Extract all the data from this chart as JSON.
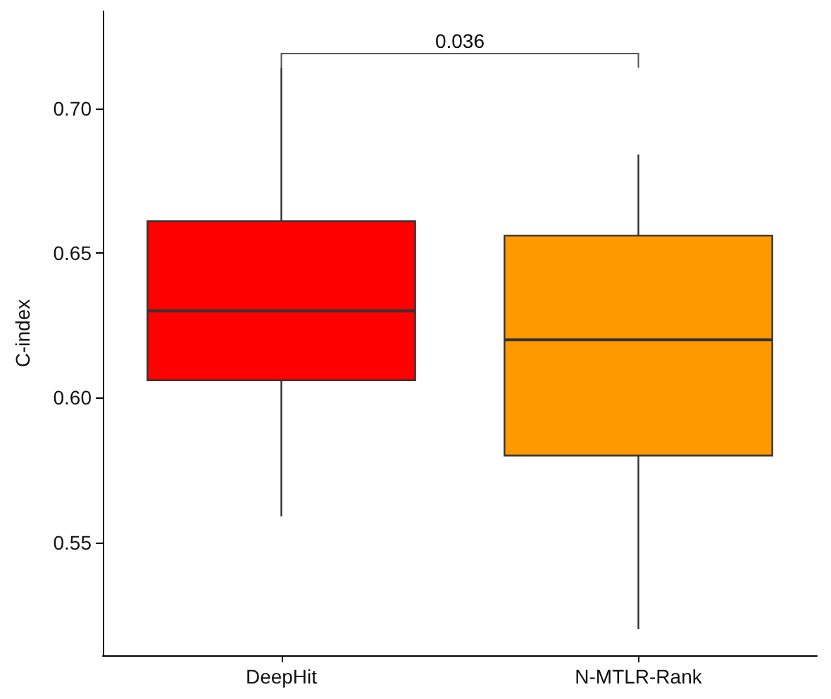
{
  "chart_data": {
    "type": "box",
    "ylabel": "C-index",
    "categories": [
      "DeepHit",
      "N-MTLR-Rank"
    ],
    "boxes": [
      {
        "low": 0.559,
        "q1": 0.606,
        "median": 0.63,
        "q3": 0.661,
        "high": 0.714
      },
      {
        "low": 0.52,
        "q1": 0.58,
        "median": 0.62,
        "q3": 0.656,
        "high": 0.684
      }
    ],
    "colors": [
      "#ff0000",
      "#ff9900"
    ],
    "ylim": [
      0.511,
      0.7335
    ],
    "yticks": [
      0.55,
      {
        "value": 0.6,
        "label": "0.60"
      },
      0.65,
      {
        "value": 0.7,
        "label": "0.70"
      }
    ],
    "annotations": [
      "0.036"
    ],
    "grid": false
  }
}
